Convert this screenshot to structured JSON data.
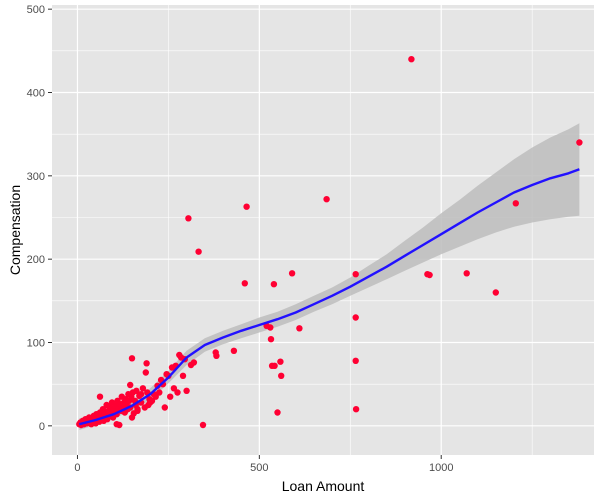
{
  "chart_data": {
    "type": "scatter",
    "title": "",
    "xlabel": "Loan Amount",
    "ylabel": "Compensation",
    "xlim": [
      -70,
      1420
    ],
    "ylim": [
      -35,
      505
    ],
    "x_ticks": [
      0,
      500,
      1000
    ],
    "y_ticks": [
      0,
      100,
      200,
      300,
      400,
      500
    ],
    "grid": true,
    "legend": "none",
    "colors": {
      "panel": "#e5e5e5",
      "grid_major": "#ffffff",
      "point": "#ff0033",
      "smooth_line": "#2211ff",
      "ribbon": "#bdbdbd"
    },
    "points": [
      [
        5,
        2
      ],
      [
        8,
        4
      ],
      [
        10,
        1
      ],
      [
        12,
        3
      ],
      [
        15,
        6
      ],
      [
        18,
        2
      ],
      [
        20,
        5
      ],
      [
        22,
        8
      ],
      [
        25,
        3
      ],
      [
        28,
        7
      ],
      [
        30,
        4
      ],
      [
        32,
        10
      ],
      [
        35,
        6
      ],
      [
        38,
        2
      ],
      [
        40,
        9
      ],
      [
        42,
        5
      ],
      [
        45,
        12
      ],
      [
        48,
        8
      ],
      [
        50,
        3
      ],
      [
        52,
        14
      ],
      [
        55,
        7
      ],
      [
        58,
        10
      ],
      [
        60,
        5
      ],
      [
        62,
        16
      ],
      [
        65,
        9
      ],
      [
        68,
        12
      ],
      [
        70,
        20
      ],
      [
        72,
        6
      ],
      [
        75,
        15
      ],
      [
        78,
        10
      ],
      [
        80,
        25
      ],
      [
        82,
        8
      ],
      [
        85,
        18
      ],
      [
        88,
        12
      ],
      [
        90,
        22
      ],
      [
        92,
        15
      ],
      [
        95,
        28
      ],
      [
        98,
        10
      ],
      [
        100,
        20
      ],
      [
        102,
        18
      ],
      [
        105,
        24
      ],
      [
        108,
        14
      ],
      [
        110,
        30
      ],
      [
        112,
        20
      ],
      [
        115,
        1
      ],
      [
        118,
        26
      ],
      [
        120,
        18
      ],
      [
        122,
        35
      ],
      [
        125,
        22
      ],
      [
        128,
        28
      ],
      [
        130,
        16
      ],
      [
        132,
        32
      ],
      [
        135,
        25
      ],
      [
        138,
        20
      ],
      [
        140,
        38
      ],
      [
        142,
        30
      ],
      [
        145,
        49
      ],
      [
        148,
        35
      ],
      [
        150,
        10
      ],
      [
        152,
        40
      ],
      [
        155,
        15
      ],
      [
        158,
        30
      ],
      [
        160,
        25
      ],
      [
        162,
        42
      ],
      [
        165,
        20
      ],
      [
        170,
        36
      ],
      [
        175,
        28
      ],
      [
        180,
        45
      ],
      [
        185,
        22
      ],
      [
        188,
        64
      ],
      [
        190,
        75
      ],
      [
        192,
        40
      ],
      [
        195,
        25
      ],
      [
        198,
        32
      ],
      [
        200,
        28
      ],
      [
        205,
        30
      ],
      [
        210,
        38
      ],
      [
        215,
        35
      ],
      [
        220,
        48
      ],
      [
        225,
        40
      ],
      [
        230,
        55
      ],
      [
        235,
        50
      ],
      [
        240,
        22
      ],
      [
        245,
        62
      ],
      [
        250,
        60
      ],
      [
        255,
        35
      ],
      [
        260,
        70
      ],
      [
        265,
        45
      ],
      [
        270,
        72
      ],
      [
        275,
        40
      ],
      [
        280,
        85
      ],
      [
        285,
        82
      ],
      [
        290,
        60
      ],
      [
        295,
        80
      ],
      [
        300,
        42
      ],
      [
        305,
        249
      ],
      [
        312,
        73
      ],
      [
        320,
        76
      ],
      [
        333,
        209
      ],
      [
        345,
        1
      ],
      [
        380,
        88
      ],
      [
        382,
        84
      ],
      [
        430,
        90
      ],
      [
        460,
        171
      ],
      [
        465,
        263
      ],
      [
        520,
        120
      ],
      [
        530,
        118
      ],
      [
        532,
        104
      ],
      [
        535,
        72
      ],
      [
        540,
        170
      ],
      [
        542,
        72
      ],
      [
        550,
        16
      ],
      [
        558,
        77
      ],
      [
        560,
        60
      ],
      [
        590,
        183
      ],
      [
        610,
        117
      ],
      [
        685,
        272
      ],
      [
        765,
        182
      ],
      [
        765,
        130
      ],
      [
        765,
        78
      ],
      [
        766,
        20
      ],
      [
        918,
        440
      ],
      [
        962,
        182
      ],
      [
        968,
        181
      ],
      [
        1070,
        183
      ],
      [
        1150,
        160
      ],
      [
        1205,
        267
      ],
      [
        1380,
        340
      ],
      [
        150,
        81
      ],
      [
        108,
        2
      ],
      [
        145,
        22
      ],
      [
        62,
        35
      ],
      [
        175,
        38
      ],
      [
        165,
        18
      ]
    ],
    "smooth_line": [
      [
        5,
        2
      ],
      [
        50,
        7
      ],
      [
        100,
        14
      ],
      [
        150,
        24
      ],
      [
        200,
        38
      ],
      [
        250,
        58
      ],
      [
        300,
        82
      ],
      [
        350,
        97
      ],
      [
        400,
        106
      ],
      [
        450,
        114
      ],
      [
        500,
        121
      ],
      [
        550,
        128
      ],
      [
        600,
        136
      ],
      [
        650,
        146
      ],
      [
        700,
        156
      ],
      [
        750,
        167
      ],
      [
        800,
        179
      ],
      [
        850,
        191
      ],
      [
        900,
        204
      ],
      [
        950,
        217
      ],
      [
        1000,
        230
      ],
      [
        1050,
        243
      ],
      [
        1100,
        256
      ],
      [
        1150,
        268
      ],
      [
        1200,
        280
      ],
      [
        1250,
        289
      ],
      [
        1300,
        297
      ],
      [
        1350,
        303
      ],
      [
        1380,
        308
      ]
    ],
    "confidence_band": [
      [
        5,
        -5,
        9
      ],
      [
        50,
        1,
        13
      ],
      [
        100,
        9,
        19
      ],
      [
        150,
        18,
        30
      ],
      [
        200,
        31,
        45
      ],
      [
        250,
        51,
        66
      ],
      [
        300,
        73,
        90
      ],
      [
        350,
        89,
        105
      ],
      [
        400,
        98,
        114
      ],
      [
        450,
        105,
        122
      ],
      [
        500,
        112,
        130
      ],
      [
        550,
        119,
        137
      ],
      [
        600,
        127,
        146
      ],
      [
        650,
        137,
        156
      ],
      [
        700,
        146,
        166
      ],
      [
        750,
        156,
        178
      ],
      [
        800,
        166,
        192
      ],
      [
        850,
        176,
        206
      ],
      [
        900,
        186,
        222
      ],
      [
        950,
        196,
        238
      ],
      [
        1000,
        206,
        255
      ],
      [
        1050,
        215,
        271
      ],
      [
        1100,
        224,
        288
      ],
      [
        1150,
        232,
        304
      ],
      [
        1200,
        239,
        320
      ],
      [
        1250,
        244,
        334
      ],
      [
        1300,
        248,
        346
      ],
      [
        1350,
        251,
        356
      ],
      [
        1380,
        252,
        363
      ]
    ]
  }
}
